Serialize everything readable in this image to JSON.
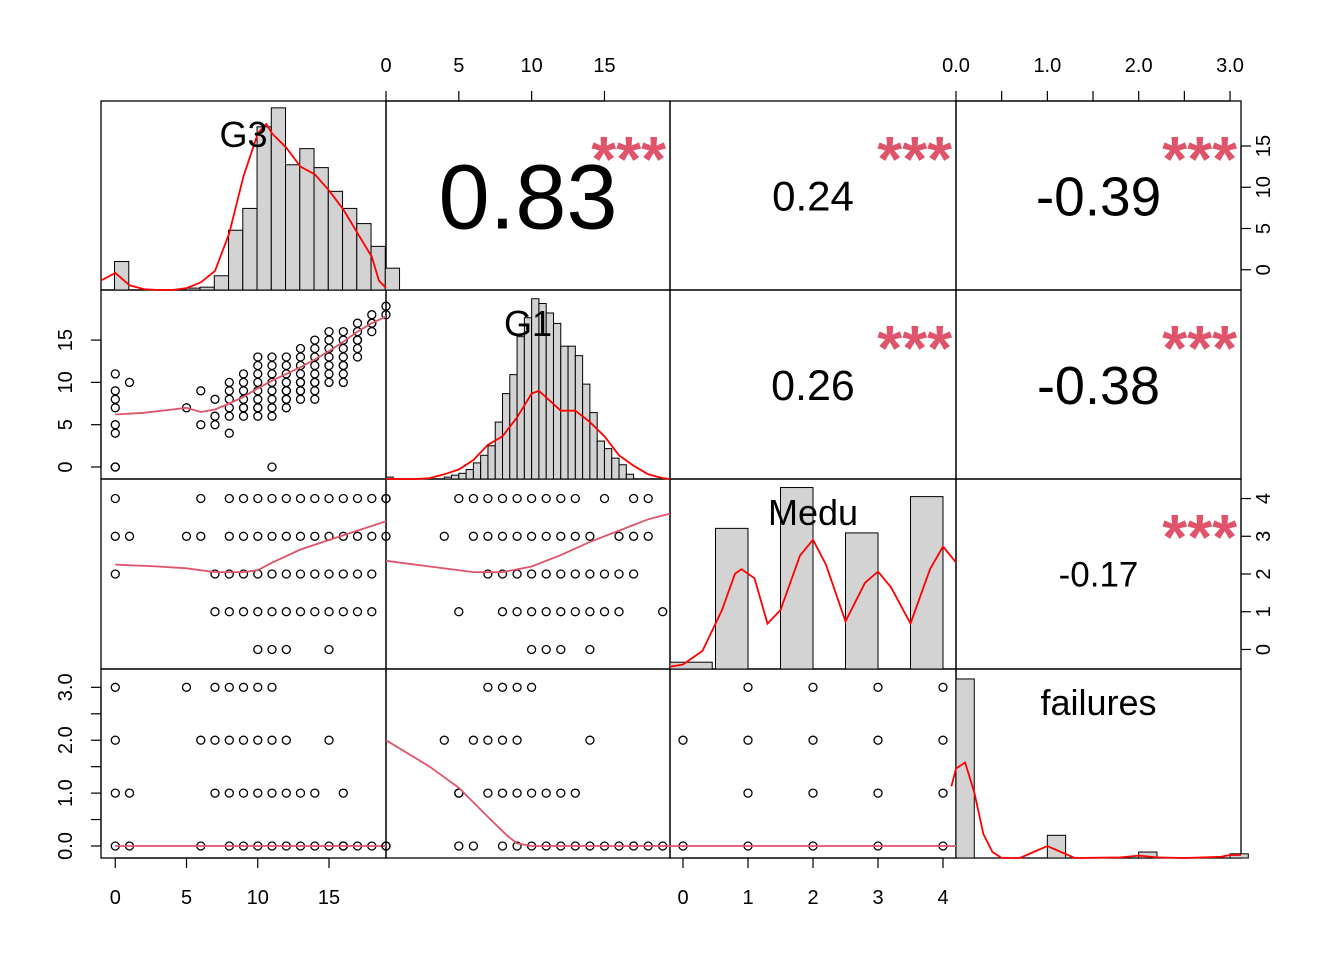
{
  "chart_data": {
    "type": "scatter",
    "subtype": "pairs-panel-matrix",
    "variables": [
      "G3",
      "G1",
      "Medu",
      "failures"
    ],
    "colors": {
      "density": "#ff0000",
      "loess": "#df536b",
      "stars": "#df536b",
      "bar_fill": "#d3d3d3",
      "stroke": "#000000"
    },
    "correlations": [
      {
        "row": 0,
        "col": 1,
        "label": "0.83",
        "stars": "***"
      },
      {
        "row": 0,
        "col": 2,
        "label": "0.24",
        "stars": "***"
      },
      {
        "row": 0,
        "col": 3,
        "label": "-0.39",
        "stars": "***"
      },
      {
        "row": 1,
        "col": 2,
        "label": "0.26",
        "stars": "***"
      },
      {
        "row": 1,
        "col": 3,
        "label": "-0.38",
        "stars": "***"
      },
      {
        "row": 2,
        "col": 3,
        "label": "-0.17",
        "stars": "***"
      }
    ],
    "axes": {
      "G3": {
        "range": [
          -1,
          19
        ],
        "ticks": [
          0,
          5,
          10,
          15
        ],
        "tick_labels": [
          "0",
          "5",
          "10",
          "15"
        ]
      },
      "G1": {
        "range": [
          0,
          19.5
        ],
        "ticks": [
          0,
          5,
          10,
          15
        ],
        "tick_labels": [
          "0",
          "5",
          "10",
          "15"
        ]
      },
      "Medu": {
        "range": [
          -0.2,
          4.2
        ],
        "ticks": [
          0,
          1,
          2,
          3,
          4
        ],
        "tick_labels": [
          "0",
          "1",
          "2",
          "3",
          "4"
        ]
      },
      "failures": {
        "range": [
          0,
          3.12
        ],
        "ticks": [
          0,
          0.5,
          1,
          1.5,
          2,
          2.5,
          3
        ],
        "tick_labels": [
          "0.0",
          "",
          "1.0",
          "",
          "2.0",
          "",
          "3.0"
        ]
      }
    },
    "histograms": {
      "G3": {
        "bin_start": -0.05,
        "bin_width": 1,
        "count_max": 19.5,
        "counts": [
          3,
          0,
          0,
          0,
          0,
          0.2,
          0.3,
          1.5,
          6.3,
          8.6,
          17.2,
          19.2,
          13.2,
          14.9,
          12.9,
          10.4,
          8.6,
          7,
          4.6,
          2.3
        ]
      },
      "G1": {
        "bin_start": 0,
        "bin_width": 0.5,
        "count_max": 19.5,
        "counts": [
          0.2,
          0,
          0,
          0,
          0,
          0,
          0,
          0,
          0.2,
          0.4,
          0.6,
          1,
          1.7,
          2.5,
          3.5,
          6,
          9,
          11,
          15,
          17,
          19,
          18.5,
          17.5,
          16.4,
          14,
          14,
          13,
          10,
          7,
          4,
          3.2,
          2.2,
          1.5,
          0.5
        ]
      },
      "Medu": {
        "bins": [
          [
            -0.2,
            0.45,
            0.15
          ],
          [
            0.5,
            1,
            3.1
          ],
          [
            1.5,
            2,
            4
          ],
          [
            2.5,
            3,
            3
          ],
          [
            3.5,
            4,
            3.8
          ]
        ],
        "count_max": 4.1
      },
      "failures": {
        "bin_start": 0,
        "bin_width": 0.2,
        "count_max": 3.1,
        "counts": [
          3,
          0,
          0,
          0,
          0,
          0.38,
          0,
          0,
          0,
          0,
          0.1,
          0,
          0,
          0,
          0,
          0.07
        ]
      }
    },
    "densities": {
      "G3": [
        [
          -1,
          1
        ],
        [
          0,
          1.8
        ],
        [
          1,
          0.5
        ],
        [
          2,
          0.1
        ],
        [
          3,
          0
        ],
        [
          4,
          0
        ],
        [
          5,
          0.2
        ],
        [
          6,
          0.8
        ],
        [
          7,
          2
        ],
        [
          8,
          6
        ],
        [
          9,
          12
        ],
        [
          10,
          16.5
        ],
        [
          10.6,
          17.5
        ],
        [
          11,
          16.5
        ],
        [
          12,
          15
        ],
        [
          13,
          13
        ],
        [
          14,
          12.2
        ],
        [
          15,
          10.5
        ],
        [
          16,
          8.5
        ],
        [
          17,
          6
        ],
        [
          18,
          3.5
        ],
        [
          18.5,
          1
        ],
        [
          19,
          0.2
        ]
      ],
      "G1": [
        [
          0,
          0
        ],
        [
          2,
          0
        ],
        [
          3,
          0.1
        ],
        [
          4,
          0.5
        ],
        [
          5,
          1
        ],
        [
          6,
          2
        ],
        [
          7,
          3.6
        ],
        [
          8,
          4.5
        ],
        [
          9,
          6.5
        ],
        [
          10,
          9
        ],
        [
          10.5,
          9.3
        ],
        [
          11,
          8.6
        ],
        [
          12,
          7.2
        ],
        [
          13,
          7.2
        ],
        [
          14,
          6
        ],
        [
          15,
          4.5
        ],
        [
          16,
          2.5
        ],
        [
          17,
          1.4
        ],
        [
          18,
          0.5
        ],
        [
          19,
          0.1
        ],
        [
          19.5,
          0
        ]
      ],
      "Medu": [
        [
          -0.2,
          0.05
        ],
        [
          0,
          0.1
        ],
        [
          0.3,
          0.4
        ],
        [
          0.6,
          1.3
        ],
        [
          0.8,
          2.1
        ],
        [
          0.9,
          2.2
        ],
        [
          1.1,
          2
        ],
        [
          1.3,
          1
        ],
        [
          1.5,
          1.3
        ],
        [
          1.8,
          2.5
        ],
        [
          2,
          2.85
        ],
        [
          2.2,
          2.3
        ],
        [
          2.5,
          1.05
        ],
        [
          2.8,
          1.9
        ],
        [
          3,
          2.15
        ],
        [
          3.2,
          1.8
        ],
        [
          3.5,
          1
        ],
        [
          3.8,
          2.2
        ],
        [
          4,
          2.7
        ],
        [
          4.2,
          2.35
        ]
      ],
      "failures": [
        [
          -0.05,
          1.2
        ],
        [
          0,
          1.5
        ],
        [
          0.1,
          1.6
        ],
        [
          0.2,
          1.1
        ],
        [
          0.3,
          0.4
        ],
        [
          0.4,
          0.1
        ],
        [
          0.5,
          0
        ],
        [
          0.7,
          0
        ],
        [
          0.85,
          0.1
        ],
        [
          1,
          0.2
        ],
        [
          1.15,
          0.1
        ],
        [
          1.3,
          0
        ],
        [
          1.8,
          0.01
        ],
        [
          2,
          0.04
        ],
        [
          2.2,
          0.01
        ],
        [
          2.5,
          0
        ],
        [
          2.9,
          0.02
        ],
        [
          3,
          0.05
        ],
        [
          3.12,
          0.05
        ]
      ]
    },
    "scatter": {
      "G3_G1": {
        "x": [
          0,
          0,
          0,
          0,
          0,
          0,
          0,
          0,
          1,
          5,
          6,
          6,
          7,
          7,
          7,
          8,
          8,
          8,
          8,
          8,
          8,
          9,
          9,
          9,
          9,
          9,
          9,
          9,
          10,
          10,
          10,
          10,
          10,
          10,
          10,
          10,
          10,
          11,
          11,
          11,
          11,
          11,
          11,
          11,
          11,
          11,
          12,
          12,
          12,
          12,
          12,
          12,
          12,
          12,
          12,
          13,
          13,
          13,
          13,
          13,
          13,
          13,
          13,
          13,
          14,
          14,
          14,
          14,
          14,
          14,
          14,
          14,
          14,
          15,
          15,
          15,
          15,
          15,
          15,
          15,
          16,
          16,
          16,
          16,
          16,
          16,
          16,
          16,
          17,
          17,
          17,
          17,
          17,
          17,
          18,
          18,
          18,
          18,
          19,
          19
        ],
        "y": [
          4,
          5,
          7,
          8,
          9,
          11,
          0,
          0,
          10,
          7,
          5,
          9,
          5,
          6,
          8,
          4,
          6,
          7,
          8,
          9,
          10,
          6,
          7,
          8,
          9,
          10,
          11,
          7,
          7,
          8,
          9,
          10,
          11,
          12,
          13,
          6,
          7,
          6,
          7,
          8,
          9,
          10,
          11,
          12,
          13,
          0,
          8,
          9,
          10,
          11,
          12,
          13,
          7,
          8,
          9,
          9,
          10,
          11,
          12,
          13,
          14,
          8,
          9,
          10,
          9,
          10,
          11,
          12,
          13,
          14,
          15,
          8,
          10,
          10,
          11,
          12,
          13,
          14,
          15,
          16,
          10,
          12,
          13,
          14,
          15,
          16,
          11,
          12,
          13,
          14,
          15,
          16,
          17,
          15,
          16,
          17,
          18,
          17,
          18,
          19
        ]
      },
      "G3_Medu": {
        "x": [
          0,
          0,
          0,
          1,
          5,
          6,
          6,
          7,
          7,
          8,
          8,
          8,
          8,
          9,
          9,
          9,
          9,
          10,
          10,
          10,
          10,
          10,
          11,
          11,
          11,
          11,
          11,
          12,
          12,
          12,
          12,
          12,
          13,
          13,
          13,
          13,
          14,
          14,
          14,
          14,
          15,
          15,
          15,
          15,
          15,
          16,
          16,
          16,
          16,
          17,
          17,
          17,
          17,
          18,
          18,
          18,
          18,
          19,
          19
        ],
        "y": [
          2,
          3,
          4,
          3,
          3,
          3,
          4,
          1,
          2,
          1,
          2,
          3,
          4,
          1,
          2,
          3,
          4,
          0,
          1,
          2,
          3,
          4,
          0,
          1,
          2,
          3,
          4,
          0,
          1,
          2,
          3,
          4,
          1,
          2,
          3,
          4,
          1,
          2,
          3,
          4,
          0,
          1,
          2,
          3,
          4,
          1,
          2,
          3,
          4,
          1,
          2,
          3,
          4,
          1,
          2,
          3,
          4,
          3,
          4
        ]
      },
      "G3_failures": {
        "x": [
          0,
          0,
          0,
          0,
          1,
          1,
          5,
          6,
          6,
          7,
          7,
          8,
          8,
          8,
          9,
          9,
          9,
          10,
          10,
          10,
          11,
          11,
          11,
          12,
          12,
          13,
          13,
          14,
          15,
          15,
          16,
          16,
          17,
          18,
          19,
          7,
          8,
          9,
          10,
          11,
          12,
          14,
          16
        ],
        "y": [
          0,
          1,
          2,
          3,
          0,
          1,
          3,
          0,
          2,
          1,
          3,
          0,
          2,
          3,
          0,
          2,
          3,
          0,
          1,
          3,
          0,
          1,
          3,
          0,
          2,
          0,
          1,
          0,
          0,
          2,
          0,
          1,
          0,
          0,
          0,
          2,
          1,
          1,
          2,
          2,
          1,
          1,
          0
        ]
      },
      "G1_Medu": {
        "x": [
          0,
          4,
          5,
          5,
          6,
          6,
          7,
          7,
          7,
          8,
          8,
          8,
          8,
          9,
          9,
          9,
          9,
          10,
          10,
          10,
          10,
          10,
          11,
          11,
          11,
          11,
          11,
          12,
          12,
          12,
          12,
          12,
          13,
          13,
          13,
          13,
          14,
          14,
          14,
          14,
          15,
          15,
          15,
          16,
          16,
          16,
          17,
          17,
          17,
          18,
          18,
          19
        ],
        "y": [
          4,
          3,
          1,
          4,
          3,
          4,
          2,
          3,
          4,
          1,
          2,
          3,
          4,
          1,
          2,
          3,
          4,
          0,
          1,
          2,
          3,
          4,
          0,
          1,
          2,
          3,
          4,
          0,
          1,
          2,
          3,
          4,
          1,
          2,
          3,
          4,
          0,
          1,
          2,
          3,
          1,
          2,
          4,
          1,
          2,
          3,
          2,
          3,
          4,
          3,
          4,
          1
        ]
      },
      "G1_failures": {
        "x": [
          0,
          4,
          5,
          5,
          6,
          6,
          7,
          7,
          7,
          8,
          8,
          8,
          8,
          9,
          9,
          9,
          9,
          10,
          10,
          10,
          11,
          11,
          12,
          12,
          13,
          13,
          14,
          14,
          15,
          16,
          17,
          18,
          19,
          5
        ],
        "y": [
          0,
          2,
          0,
          1,
          0,
          2,
          1,
          2,
          3,
          0,
          1,
          2,
          3,
          0,
          1,
          2,
          3,
          0,
          1,
          3,
          0,
          1,
          0,
          1,
          0,
          1,
          0,
          2,
          0,
          0,
          0,
          0,
          0,
          1
        ]
      },
      "Medu_failures": {
        "x": [
          0,
          0,
          1,
          1,
          1,
          1,
          2,
          2,
          2,
          2,
          3,
          3,
          3,
          3,
          4,
          4,
          4,
          4
        ],
        "y": [
          0,
          2,
          0,
          1,
          2,
          3,
          0,
          1,
          2,
          3,
          0,
          1,
          2,
          3,
          0,
          1,
          2,
          3
        ]
      }
    },
    "loess": {
      "G3_G1": [
        [
          0,
          6.2
        ],
        [
          2,
          6.4
        ],
        [
          4,
          6.8
        ],
        [
          5,
          7
        ],
        [
          6,
          6.5
        ],
        [
          7,
          6.8
        ],
        [
          8,
          7.5
        ],
        [
          9,
          8.3
        ],
        [
          10,
          9.3
        ],
        [
          11,
          10.2
        ],
        [
          12,
          11
        ],
        [
          13,
          11.8
        ],
        [
          14,
          12.7
        ],
        [
          15,
          13.7
        ],
        [
          16,
          14.8
        ],
        [
          17,
          16
        ],
        [
          18,
          17
        ],
        [
          19,
          17.8
        ]
      ],
      "G3_Medu": [
        [
          0,
          2.25
        ],
        [
          3,
          2.2
        ],
        [
          5,
          2.15
        ],
        [
          7,
          2.05
        ],
        [
          9,
          2.05
        ],
        [
          10,
          2.1
        ],
        [
          11,
          2.3
        ],
        [
          13,
          2.65
        ],
        [
          15,
          2.9
        ],
        [
          17,
          3.15
        ],
        [
          19,
          3.4
        ]
      ],
      "G3_failures": [
        [
          0,
          0
        ],
        [
          19,
          0
        ]
      ],
      "G1_Medu": [
        [
          0,
          2.35
        ],
        [
          3,
          2.2
        ],
        [
          6,
          2.05
        ],
        [
          8,
          2.05
        ],
        [
          10,
          2.2
        ],
        [
          12,
          2.5
        ],
        [
          14,
          2.85
        ],
        [
          16,
          3.15
        ],
        [
          18,
          3.45
        ],
        [
          19.5,
          3.6
        ]
      ],
      "G1_failures": [
        [
          0,
          2
        ],
        [
          3,
          1.5
        ],
        [
          5,
          1.1
        ],
        [
          7,
          0.55
        ],
        [
          8.3,
          0.2
        ],
        [
          9,
          0.05
        ],
        [
          10,
          0
        ],
        [
          12,
          0
        ],
        [
          19.5,
          0
        ]
      ],
      "Medu_failures": [
        [
          -0.2,
          0
        ],
        [
          4.2,
          0
        ]
      ]
    }
  }
}
